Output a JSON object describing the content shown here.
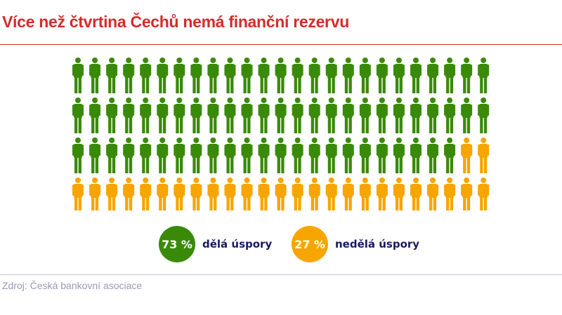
{
  "title": "Více než čtvrtina Čechů nemá finanční rezervu",
  "source": "Zdroj: Česká bankovní asociace",
  "colors": {
    "title": "#d52b2b",
    "saves": "#3a8a0a",
    "not_saves": "#f7a500"
  },
  "chart_data": {
    "type": "pictogram",
    "icon": "person-icon",
    "rows": 4,
    "columns": 25,
    "series": [
      {
        "name": "dělá úspory",
        "value": 73,
        "label": "73 %",
        "color": "#3a8a0a"
      },
      {
        "name": "nedělá úspory",
        "value": 27,
        "label": "27 %",
        "color": "#f7a500"
      }
    ]
  }
}
